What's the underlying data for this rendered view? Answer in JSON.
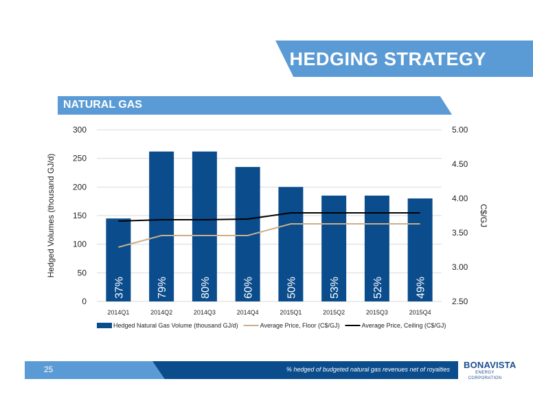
{
  "header": {
    "title": "HEDGING STRATEGY"
  },
  "section": {
    "title": "NATURAL GAS"
  },
  "chart_data": {
    "type": "bar",
    "categories": [
      "2014Q1",
      "2014Q2",
      "2014Q3",
      "2014Q4",
      "2015Q1",
      "2015Q2",
      "2015Q3",
      "2015Q4"
    ],
    "ylabel": "Hedged Volumes (thousand GJ/d)",
    "y2label": "C$/GJ",
    "ylim": [
      0,
      300
    ],
    "yticks": [
      "0",
      "50",
      "100",
      "150",
      "200",
      "250",
      "300"
    ],
    "y2lim": [
      2.5,
      5.0
    ],
    "y2ticks": [
      "2.50",
      "3.00",
      "3.50",
      "4.00",
      "4.50",
      "5.00"
    ],
    "grid": true,
    "legend_position": "bottom",
    "series": [
      {
        "name": "Hedged Natural Gas Volume (thousand GJ/d)",
        "kind": "bar",
        "axis": "left",
        "color": "#0b4c8c",
        "values": [
          145,
          262,
          262,
          235,
          200,
          185,
          185,
          180
        ]
      },
      {
        "name": "Average Price, Floor (C$/GJ)",
        "kind": "line",
        "axis": "right",
        "color": "#c8ae8a",
        "values": [
          3.29,
          3.46,
          3.46,
          3.46,
          3.63,
          3.63,
          3.63,
          3.63
        ]
      },
      {
        "name": "Average Price, Ceiling (C$/GJ)",
        "kind": "line",
        "axis": "right",
        "color": "#000000",
        "values": [
          3.67,
          3.69,
          3.69,
          3.7,
          3.79,
          3.79,
          3.79,
          3.79
        ]
      }
    ],
    "bar_labels": [
      "37%",
      "79%",
      "80%",
      "60%",
      "50%",
      "53%",
      "52%",
      "49%"
    ]
  },
  "footer": {
    "page_number": "25",
    "footnote": "% hedged of budgeted natural gas revenues net of royalties",
    "logo_name": "BONAVISTA",
    "logo_sub": "ENERGY CORPORATION"
  }
}
